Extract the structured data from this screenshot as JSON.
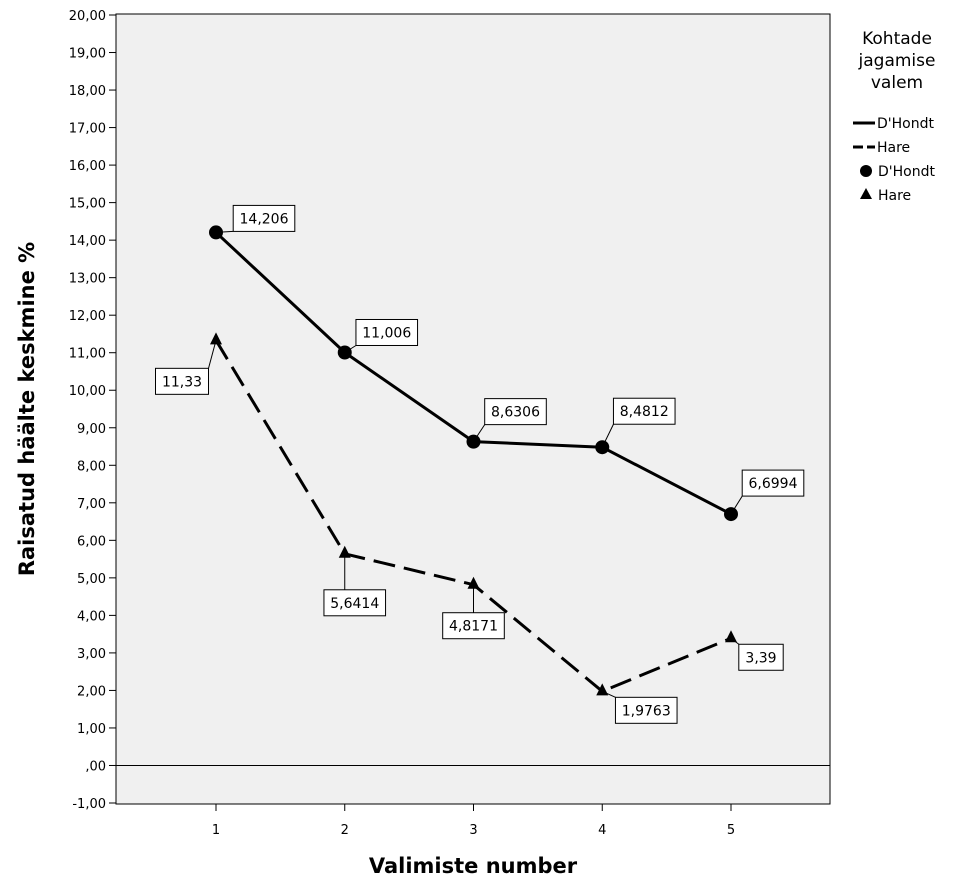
{
  "chart_data": {
    "type": "line",
    "xlabel": "Valimiste number",
    "ylabel": "Raisatud häälte keskmine %",
    "x_ticks": [
      "1",
      "2",
      "3",
      "4",
      "5"
    ],
    "y_ticks": [
      "-1,00",
      ",00",
      "1,00",
      "2,00",
      "3,00",
      "4,00",
      "5,00",
      "6,00",
      "7,00",
      "8,00",
      "9,00",
      "10,00",
      "11,00",
      "12,00",
      "13,00",
      "14,00",
      "15,00",
      "16,00",
      "17,00",
      "18,00",
      "19,00",
      "20,00"
    ],
    "ylim": [
      -1,
      20
    ],
    "xlim": [
      0.25,
      5.8
    ],
    "grid": false,
    "reference_line_y": 0,
    "legend_position": "right",
    "series": [
      {
        "name": "D'Hondt",
        "x": [
          1,
          2,
          3,
          4,
          5
        ],
        "values": [
          14.206,
          11.006,
          8.6306,
          8.4812,
          6.6994
        ],
        "labels": [
          "14,206",
          "11,006",
          "8,6306",
          "8,4812",
          "6,6994"
        ],
        "line_style": "solid",
        "marker": "circle"
      },
      {
        "name": "Hare",
        "x": [
          1,
          2,
          3,
          4,
          5
        ],
        "values": [
          11.33,
          5.6414,
          4.8171,
          1.9763,
          3.39
        ],
        "labels": [
          "11,33",
          "5,6414",
          "4,8171",
          "1,9763",
          "3,39"
        ],
        "line_style": "dashed",
        "marker": "triangle"
      }
    ],
    "legend": {
      "title_lines": [
        "Kohtade",
        "jagamise",
        "valem"
      ],
      "entries": [
        {
          "label": "D'Hondt",
          "kind": "solid-line"
        },
        {
          "label": "Hare",
          "kind": "dashed-line"
        },
        {
          "label": "D'Hondt",
          "kind": "circle-marker"
        },
        {
          "label": "Hare",
          "kind": "triangle-marker"
        }
      ]
    },
    "colors": {
      "plot_background": "#f0f0f0",
      "line": "#000000",
      "label_background": "#ffffff"
    }
  }
}
